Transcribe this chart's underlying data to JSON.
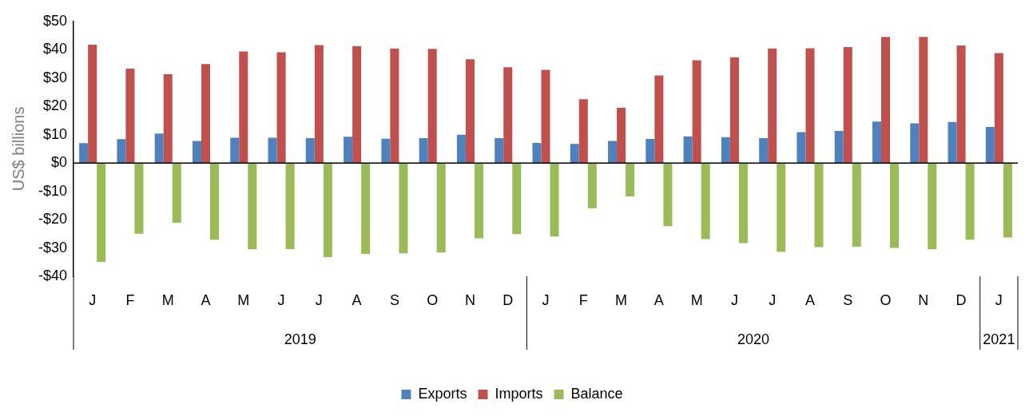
{
  "chart_data": {
    "type": "bar",
    "ylabel": "US$ billions",
    "categories": [
      "J",
      "F",
      "M",
      "A",
      "M",
      "J",
      "J",
      "A",
      "S",
      "O",
      "N",
      "D",
      "J",
      "F",
      "M",
      "A",
      "M",
      "J",
      "J",
      "A",
      "S",
      "O",
      "N",
      "D",
      "J"
    ],
    "series": [
      {
        "name": "Exports",
        "color": "#4f81bd",
        "values": [
          7.0,
          8.4,
          10.4,
          7.8,
          8.9,
          8.9,
          8.8,
          9.3,
          8.6,
          8.8,
          10.0,
          8.8,
          7.1,
          6.7,
          7.8,
          8.5,
          9.4,
          9.1,
          8.8,
          10.9,
          11.3,
          14.6,
          14.0,
          14.5,
          12.7
        ]
      },
      {
        "name": "Imports",
        "color": "#c0504d",
        "values": [
          41.8,
          33.3,
          31.3,
          34.9,
          39.4,
          39.1,
          41.6,
          41.3,
          40.4,
          40.3,
          36.6,
          33.8,
          32.9,
          22.5,
          19.5,
          30.9,
          36.3,
          37.3,
          40.4,
          40.5,
          40.9,
          44.5,
          44.5,
          41.5,
          38.8
        ]
      },
      {
        "name": "Balance",
        "color": "#9bbb59",
        "values": [
          -34.9,
          -25.0,
          -21.1,
          -27.1,
          -30.5,
          -30.4,
          -33.2,
          -32.1,
          -31.9,
          -31.6,
          -26.6,
          -25.1,
          -26.0,
          -16.0,
          -11.8,
          -22.3,
          -26.9,
          -28.3,
          -31.4,
          -29.7,
          -29.6,
          -30.0,
          -30.5,
          -27.1,
          -26.3
        ]
      }
    ],
    "ylim": [
      -40,
      50
    ],
    "yticks": [
      {
        "value": -40,
        "label": "-$40"
      },
      {
        "value": -30,
        "label": "-$30"
      },
      {
        "value": -20,
        "label": "-$20"
      },
      {
        "value": -10,
        "label": "-$10"
      },
      {
        "value": 0,
        "label": "$0"
      },
      {
        "value": 10,
        "label": "$10"
      },
      {
        "value": 20,
        "label": "$20"
      },
      {
        "value": 30,
        "label": "$30"
      },
      {
        "value": 40,
        "label": "$40"
      },
      {
        "value": 50,
        "label": "$50"
      }
    ],
    "annotations": [
      "2019",
      "2020",
      "2021"
    ],
    "ref_lines": [
      {
        "axis": "y",
        "value": 0,
        "color": "#000000"
      }
    ],
    "legend": "bottom"
  }
}
